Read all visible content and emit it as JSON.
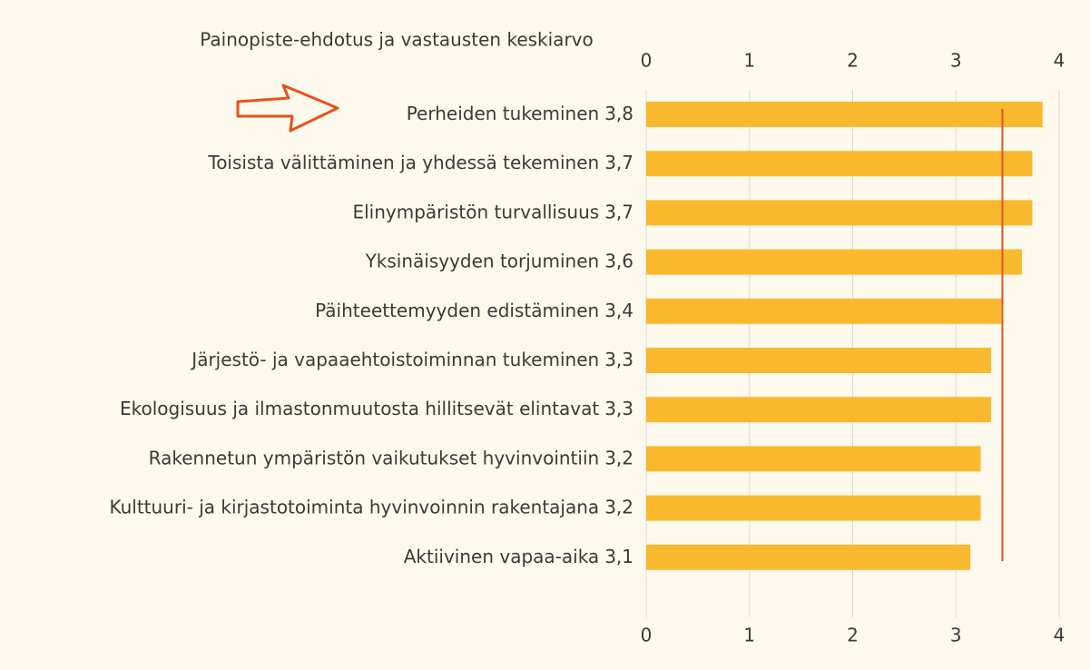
{
  "chart_data": {
    "type": "bar",
    "orientation": "horizontal",
    "title": "Painopiste-ehdotus ja vastausten keskiarvo",
    "categories": [
      "Perheiden tukeminen",
      "Toisista välittäminen ja yhdessä tekeminen",
      "Elinympäristön turvallisuus",
      "Yksinäisyyden torjuminen",
      "Päihteettemyyden edistäminen",
      "Järjestö- ja vapaaehtoistoiminnan tukeminen",
      "Ekologisuus ja ilmastonmuutosta hillitsevät elintavat",
      "Rakennetun ympäristön vaikutukset hyvinvointiin",
      "Kulttuuri- ja kirjastotoiminta hyvinvoinnin rakentajana",
      "Aktiivinen vapaa-aika"
    ],
    "values": [
      3.84,
      3.74,
      3.74,
      3.64,
      3.44,
      3.34,
      3.34,
      3.24,
      3.24,
      3.14
    ],
    "value_labels": [
      "3,8",
      "3,7",
      "3,7",
      "3,6",
      "3,4",
      "3,3",
      "3,3",
      "3,2",
      "3,2",
      "3,1"
    ],
    "color": "#f9b92e",
    "reference_line": {
      "value": 3.45,
      "color": "#e8501e"
    },
    "xlim": [
      0,
      4
    ],
    "xticks": [
      0,
      1,
      2,
      3,
      4
    ],
    "grid": true
  }
}
